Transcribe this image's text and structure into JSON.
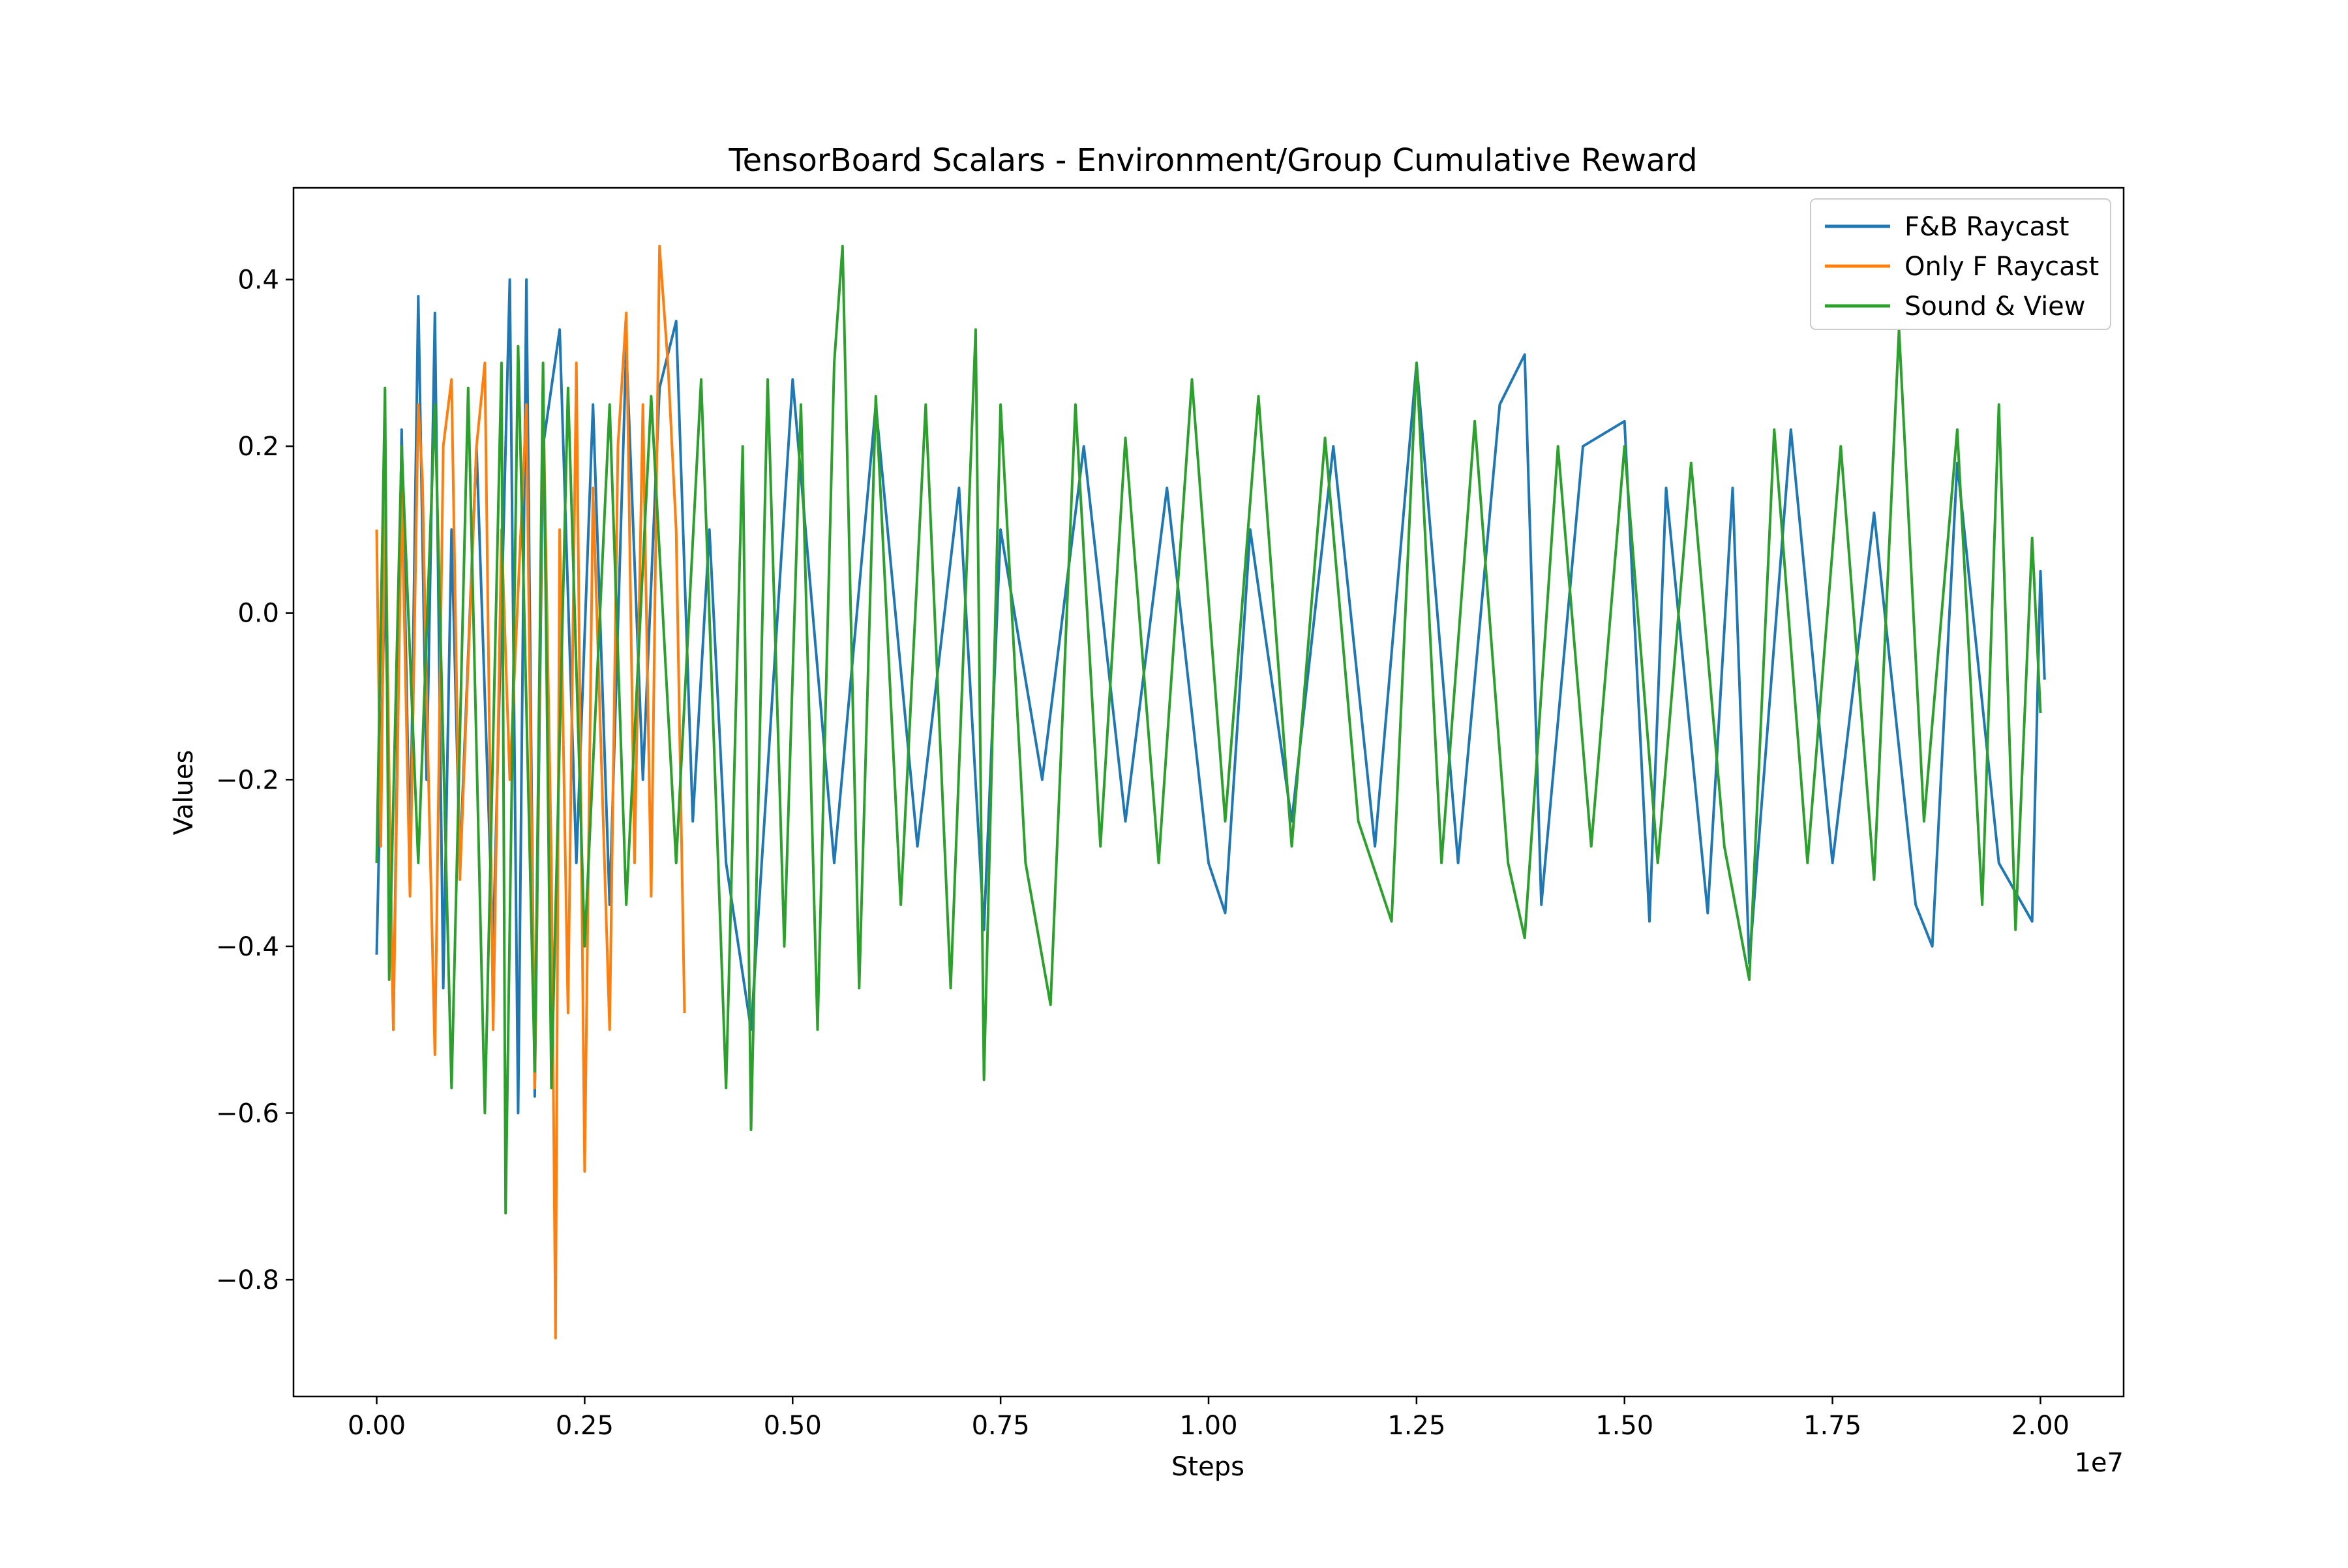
{
  "chart_data": {
    "type": "line",
    "title": "TensorBoard Scalars - Environment/Group Cumulative Reward",
    "xlabel": "Steps",
    "ylabel": "Values",
    "x_offset_label": "1e7",
    "xlim": [
      -1000000,
      21000000
    ],
    "ylim": [
      -0.94,
      0.51
    ],
    "xticks": [
      0,
      2500000,
      5000000,
      7500000,
      10000000,
      12500000,
      15000000,
      17500000,
      20000000
    ],
    "xtick_labels": [
      "0.00",
      "0.25",
      "0.50",
      "0.75",
      "1.00",
      "1.25",
      "1.50",
      "1.75",
      "2.00"
    ],
    "yticks": [
      -0.8,
      -0.6,
      -0.4,
      -0.2,
      0.0,
      0.2,
      0.4
    ],
    "ytick_labels": [
      "−0.8",
      "−0.6",
      "−0.4",
      "−0.2",
      "0.0",
      "0.2",
      "0.4"
    ],
    "grid": false,
    "legend_position": "top-right",
    "series": [
      {
        "name": "F&B Raycast",
        "color": "#1f77b4",
        "x": [
          0,
          100000,
          200000,
          300000,
          400000,
          500000,
          600000,
          700000,
          800000,
          900000,
          1000000,
          1200000,
          1400000,
          1600000,
          1700000,
          1800000,
          1900000,
          2000000,
          2200000,
          2400000,
          2600000,
          2800000,
          3000000,
          3200000,
          3400000,
          3600000,
          3800000,
          4000000,
          4200000,
          4500000,
          5000000,
          5500000,
          6000000,
          6500000,
          7000000,
          7300000,
          7500000,
          8000000,
          8500000,
          9000000,
          9500000,
          10000000,
          10200000,
          10500000,
          11000000,
          11500000,
          12000000,
          12500000,
          13000000,
          13500000,
          13800000,
          14000000,
          14500000,
          15000000,
          15300000,
          15500000,
          16000000,
          16300000,
          16500000,
          17000000,
          17500000,
          18000000,
          18500000,
          18700000,
          19000000,
          19500000,
          19900000,
          20000000,
          20050000
        ],
        "y": [
          -0.41,
          0.05,
          -0.5,
          0.22,
          -0.3,
          0.38,
          -0.2,
          0.36,
          -0.45,
          0.1,
          -0.3,
          0.2,
          -0.4,
          0.4,
          -0.6,
          0.4,
          -0.58,
          0.2,
          0.34,
          -0.3,
          0.25,
          -0.35,
          0.32,
          -0.2,
          0.27,
          0.35,
          -0.25,
          0.1,
          -0.3,
          -0.5,
          0.28,
          -0.3,
          0.25,
          -0.28,
          0.15,
          -0.38,
          0.1,
          -0.2,
          0.2,
          -0.25,
          0.15,
          -0.3,
          -0.36,
          0.1,
          -0.25,
          0.2,
          -0.28,
          0.3,
          -0.3,
          0.25,
          0.31,
          -0.35,
          0.2,
          0.23,
          -0.37,
          0.15,
          -0.36,
          0.15,
          -0.42,
          0.22,
          -0.3,
          0.12,
          -0.35,
          -0.4,
          0.18,
          -0.3,
          -0.37,
          0.05,
          -0.08
        ]
      },
      {
        "name": "Only F Raycast",
        "color": "#ff7f0e",
        "x": [
          0,
          50000,
          100000,
          150000,
          200000,
          300000,
          400000,
          500000,
          550000,
          600000,
          700000,
          800000,
          900000,
          1000000,
          1200000,
          1300000,
          1400000,
          1500000,
          1600000,
          1800000,
          1900000,
          2000000,
          2100000,
          2150000,
          2200000,
          2300000,
          2400000,
          2500000,
          2600000,
          2800000,
          2900000,
          3000000,
          3100000,
          3200000,
          3300000,
          3400000,
          3500000,
          3600000,
          3700000
        ],
        "y": [
          0.1,
          -0.28,
          0.17,
          -0.2,
          -0.5,
          0.15,
          -0.34,
          0.25,
          0.16,
          -0.1,
          -0.53,
          0.2,
          0.28,
          -0.32,
          0.2,
          0.3,
          -0.5,
          0.1,
          -0.2,
          0.25,
          -0.57,
          0.27,
          -0.3,
          -0.87,
          0.1,
          -0.48,
          0.3,
          -0.67,
          0.15,
          -0.5,
          0.2,
          0.36,
          -0.3,
          0.25,
          -0.34,
          0.44,
          0.3,
          0.1,
          -0.48
        ]
      },
      {
        "name": "Sound & View",
        "color": "#2ca02c",
        "x": [
          0,
          100000,
          150000,
          300000,
          500000,
          700000,
          900000,
          1100000,
          1300000,
          1500000,
          1550000,
          1700000,
          1900000,
          2000000,
          2100000,
          2300000,
          2500000,
          2800000,
          3000000,
          3300000,
          3600000,
          3900000,
          4200000,
          4400000,
          4500000,
          4700000,
          4900000,
          5100000,
          5300000,
          5500000,
          5600000,
          5800000,
          6000000,
          6300000,
          6600000,
          6900000,
          7200000,
          7300000,
          7500000,
          7800000,
          8100000,
          8400000,
          8700000,
          9000000,
          9400000,
          9800000,
          10200000,
          10600000,
          11000000,
          11400000,
          11800000,
          12200000,
          12500000,
          12800000,
          13200000,
          13600000,
          13800000,
          14200000,
          14600000,
          15000000,
          15400000,
          15800000,
          16200000,
          16500000,
          16800000,
          17200000,
          17600000,
          18000000,
          18300000,
          18600000,
          19000000,
          19300000,
          19500000,
          19700000,
          19900000,
          20000000
        ],
        "y": [
          -0.3,
          0.27,
          -0.44,
          0.2,
          -0.3,
          0.25,
          -0.57,
          0.27,
          -0.6,
          0.3,
          -0.72,
          0.32,
          -0.55,
          0.3,
          -0.57,
          0.27,
          -0.4,
          0.25,
          -0.35,
          0.26,
          -0.3,
          0.28,
          -0.57,
          0.2,
          -0.62,
          0.28,
          -0.4,
          0.25,
          -0.5,
          0.3,
          0.44,
          -0.45,
          0.26,
          -0.35,
          0.25,
          -0.45,
          0.34,
          -0.56,
          0.25,
          -0.3,
          -0.47,
          0.25,
          -0.28,
          0.21,
          -0.3,
          0.28,
          -0.25,
          0.26,
          -0.28,
          0.21,
          -0.25,
          -0.37,
          0.3,
          -0.3,
          0.23,
          -0.3,
          -0.39,
          0.2,
          -0.28,
          0.2,
          -0.3,
          0.18,
          -0.28,
          -0.44,
          0.22,
          -0.3,
          0.2,
          -0.32,
          0.34,
          -0.25,
          0.22,
          -0.35,
          0.25,
          -0.38,
          0.09,
          -0.12
        ]
      }
    ]
  }
}
